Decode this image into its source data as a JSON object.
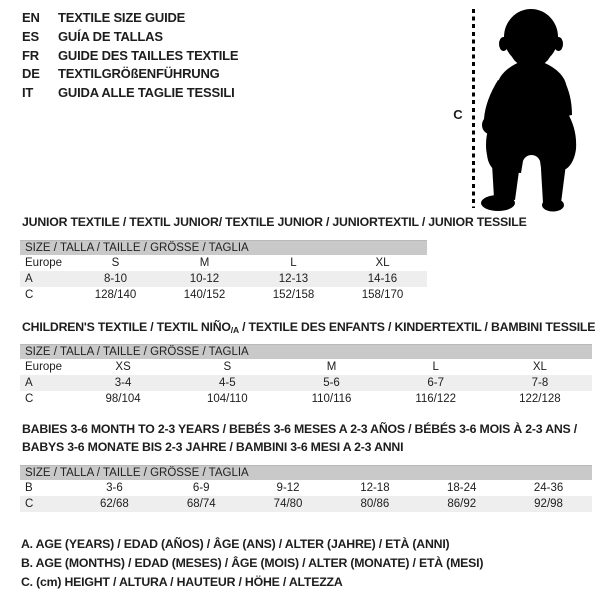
{
  "colors": {
    "background": "#ffffff",
    "table_header_band": "#c9c9c9",
    "row_shaded": "#eeeeee",
    "text": "#1d1d1d",
    "silhouette": "#000000"
  },
  "languages": [
    {
      "code": "EN",
      "text": "TEXTILE SIZE GUIDE"
    },
    {
      "code": "ES",
      "text": "GUÍA DE TALLAS"
    },
    {
      "code": "FR",
      "text": "GUIDE DES TAILLES TEXTILE"
    },
    {
      "code": "DE",
      "text": "TEXTILGRÖßENFÜHRUNG"
    },
    {
      "code": "IT",
      "text": "GUIDA ALLE TAGLIE TESSILI"
    }
  ],
  "figure": {
    "label": "C"
  },
  "sections": [
    {
      "title_lines": [
        [
          {
            "t": "JUNIOR TEXTILE / TEXTIL JUNIOR/ TEXTILE JUNIOR / JUNIORTEXTIL / JUNIOR TESSILE",
            "sub": false
          }
        ]
      ],
      "size_header": "SIZE / TALLA / TAILLE / GRÖSSE / TAGLIA",
      "rows": [
        {
          "label": "Europe",
          "cells": [
            "S",
            "M",
            "L",
            "XL"
          ],
          "shaded": false
        },
        {
          "label": "A",
          "cells": [
            "8-10",
            "10-12",
            "12-13",
            "14-16"
          ],
          "shaded": true
        },
        {
          "label": "C",
          "cells": [
            "128/140",
            "140/152",
            "152/158",
            "158/170"
          ],
          "shaded": false
        }
      ]
    },
    {
      "title_lines": [
        [
          {
            "t": "CHILDREN'S TEXTILE / TEXTIL NIÑO",
            "sub": false
          },
          {
            "t": "/A",
            "sub": true
          },
          {
            "t": " / TEXTILE DES ENFANTS / KINDERTEXTIL / BAMBINI TESSILE",
            "sub": false
          }
        ]
      ],
      "size_header": "SIZE / TALLA / TAILLE / GRÖSSE / TAGLIA",
      "rows": [
        {
          "label": "Europe",
          "cells": [
            "XS",
            "S",
            "M",
            "L",
            "XL"
          ],
          "shaded": false
        },
        {
          "label": "A",
          "cells": [
            "3-4",
            "4-5",
            "5-6",
            "6-7",
            "7-8"
          ],
          "shaded": true
        },
        {
          "label": "C",
          "cells": [
            "98/104",
            "104/110",
            "110/116",
            "116/122",
            "122/128"
          ],
          "shaded": false
        }
      ]
    },
    {
      "title_lines": [
        [
          {
            "t": "BABIES 3-6 MONTH TO 2-3 YEARS / BEBÉS 3-6 MESES A 2-3 AÑOS / BÉBÉS 3-6 MOIS À 2-3 ANS /",
            "sub": false
          }
        ],
        [
          {
            "t": "BABYS 3-6 MONATE BIS 2-3 JAHRE / BAMBINI 3-6 MESI A 2-3 ANNI",
            "sub": false
          }
        ]
      ],
      "size_header": "SIZE / TALLA / TAILLE / GRÖSSE / TAGLIA",
      "rows": [
        {
          "label": "B",
          "cells": [
            "3-6",
            "6-9",
            "9-12",
            "12-18",
            "18-24",
            "24-36"
          ],
          "shaded": false
        },
        {
          "label": "C",
          "cells": [
            "62/68",
            "68/74",
            "74/80",
            "80/86",
            "86/92",
            "92/98"
          ],
          "shaded": true
        }
      ]
    }
  ],
  "footnotes": [
    "A. AGE (YEARS) / EDAD (AÑOS) / ÂGE (ANS) / ALTER (JAHRE) / ETÀ (ANNI)",
    "B. AGE (MONTHS) / EDAD (MESES) / ÂGE (MOIS) / ALTER (MONATE) / ETÀ (MESI)",
    "C. (cm) HEIGHT / ALTURA / HAUTEUR / HÖHE / ALTEZZA"
  ]
}
